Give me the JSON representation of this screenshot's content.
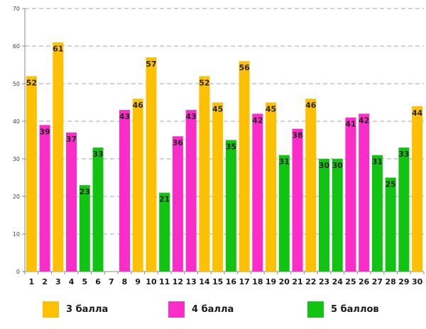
{
  "chart_data": {
    "type": "bar",
    "title": "",
    "xlabel": "",
    "ylabel": "",
    "ylim": [
      0,
      70
    ],
    "ytick_step": 10,
    "yticks": [
      0,
      10,
      20,
      30,
      40,
      50,
      60,
      70
    ],
    "grid": "dashed horizontal",
    "legend_position": "bottom",
    "categories": [
      "1",
      "2",
      "3",
      "4",
      "5",
      "6",
      "7",
      "8",
      "9",
      "10",
      "11",
      "12",
      "13",
      "14",
      "15",
      "16",
      "17",
      "18",
      "19",
      "20",
      "21",
      "22",
      "23",
      "24",
      "25",
      "26",
      "27",
      "28",
      "29",
      "30"
    ],
    "series": [
      {
        "name": "3 балла",
        "color": "#FEC002",
        "values": [
          52,
          null,
          61,
          null,
          null,
          null,
          null,
          null,
          46,
          57,
          null,
          null,
          null,
          52,
          45,
          null,
          56,
          null,
          45,
          null,
          null,
          46,
          null,
          null,
          null,
          null,
          null,
          null,
          null,
          44
        ]
      },
      {
        "name": "4 балла",
        "color": "#FA2DC8",
        "values": [
          null,
          39,
          null,
          37,
          null,
          null,
          null,
          43,
          null,
          null,
          null,
          36,
          43,
          null,
          null,
          null,
          null,
          42,
          null,
          null,
          38,
          null,
          null,
          null,
          41,
          42,
          null,
          null,
          null,
          null
        ]
      },
      {
        "name": "5 баллов",
        "color": "#12C412",
        "values": [
          null,
          null,
          null,
          null,
          23,
          33,
          null,
          null,
          null,
          null,
          21,
          null,
          null,
          null,
          null,
          35,
          null,
          null,
          null,
          31,
          null,
          null,
          30,
          30,
          null,
          null,
          31,
          25,
          33,
          null
        ]
      }
    ],
    "styles": {
      "grid_color": "#A6A6A6",
      "axis_color": "#898989",
      "value_label_color": "#262626",
      "x_label_color": "#1a1a1a",
      "y_label_color": "#404040"
    }
  }
}
